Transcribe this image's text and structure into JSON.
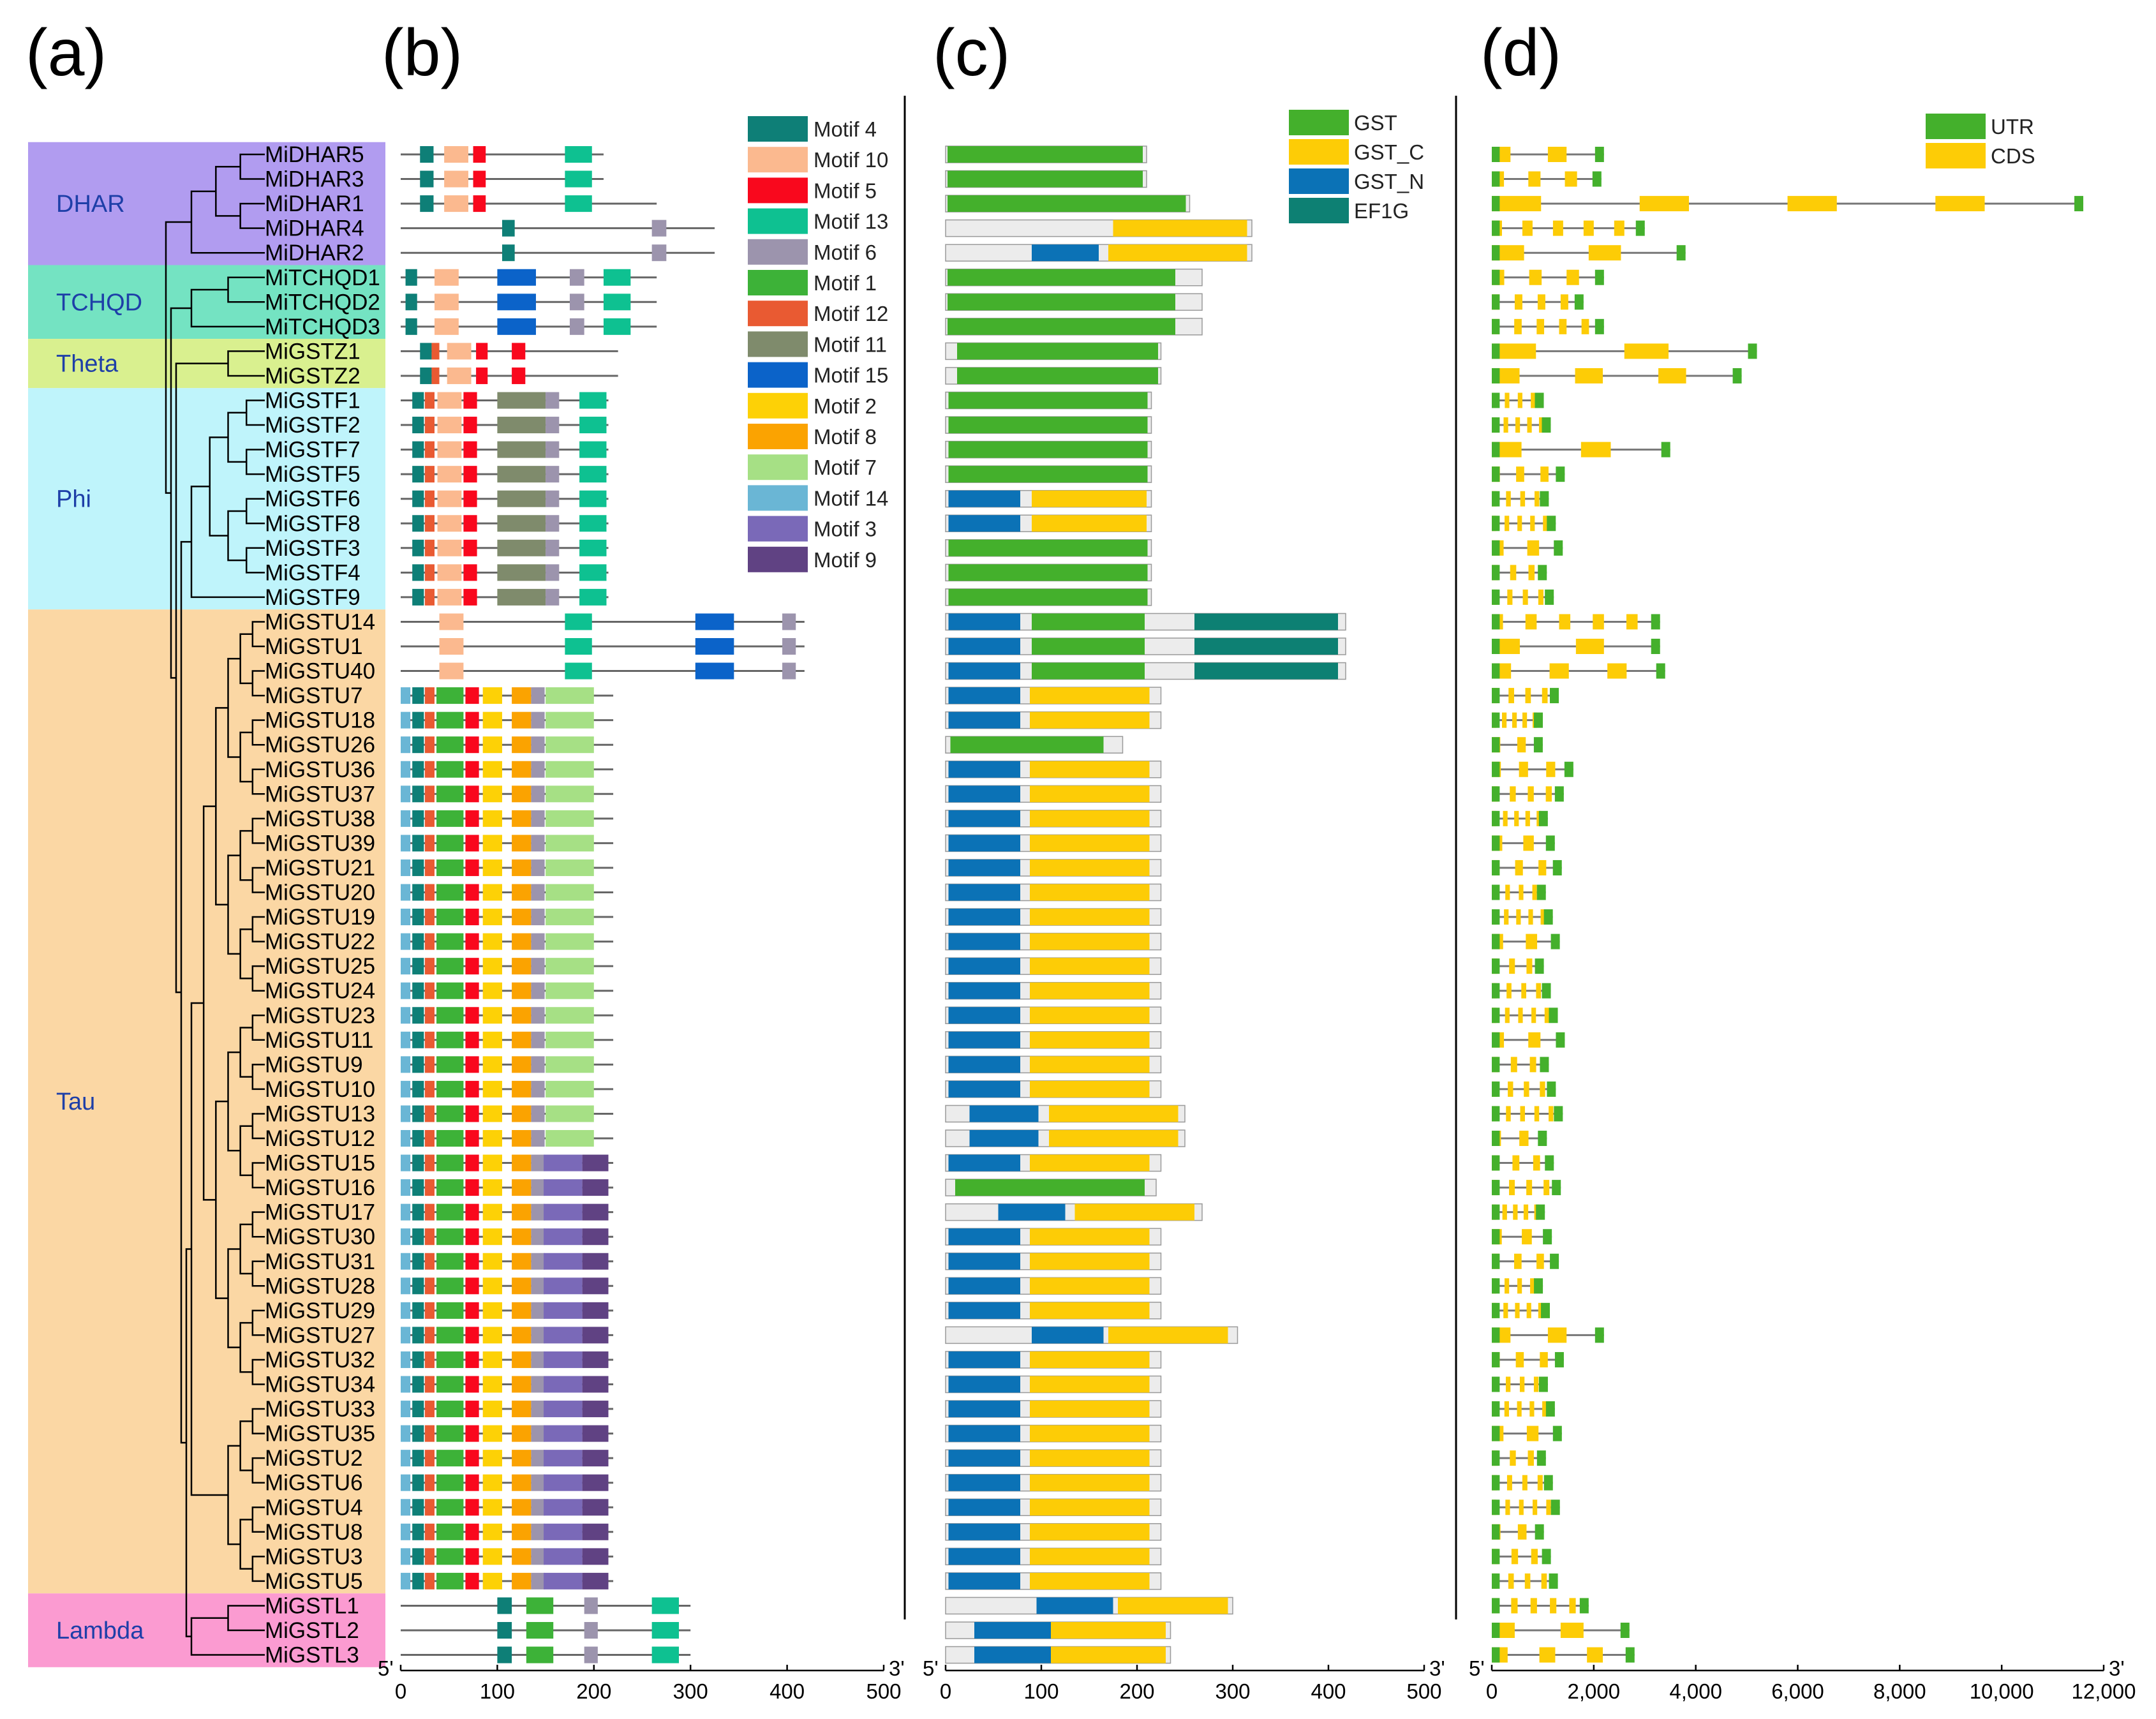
{
  "panels": {
    "a": "(a)",
    "b": "(b)",
    "c": "(c)",
    "d": "(d)"
  },
  "genes": [
    "MiDHAR5",
    "MiDHAR3",
    "MiDHAR1",
    "MiDHAR4",
    "MiDHAR2",
    "MiTCHQD1",
    "MiTCHQD2",
    "MiTCHQD3",
    "MiGSTZ1",
    "MiGSTZ2",
    "MiGSTF1",
    "MiGSTF2",
    "MiGSTF7",
    "MiGSTF5",
    "MiGSTF6",
    "MiGSTF8",
    "MiGSTF3",
    "MiGSTF4",
    "MiGSTF9",
    "MiGSTU14",
    "MiGSTU1",
    "MiGSTU40",
    "MiGSTU7",
    "MiGSTU18",
    "MiGSTU26",
    "MiGSTU36",
    "MiGSTU37",
    "MiGSTU38",
    "MiGSTU39",
    "MiGSTU21",
    "MiGSTU20",
    "MiGSTU19",
    "MiGSTU22",
    "MiGSTU25",
    "MiGSTU24",
    "MiGSTU23",
    "MiGSTU11",
    "MiGSTU9",
    "MiGSTU10",
    "MiGSTU13",
    "MiGSTU12",
    "MiGSTU15",
    "MiGSTU16",
    "MiGSTU17",
    "MiGSTU30",
    "MiGSTU31",
    "MiGSTU28",
    "MiGSTU29",
    "MiGSTU27",
    "MiGSTU32",
    "MiGSTU34",
    "MiGSTU33",
    "MiGSTU35",
    "MiGSTU2",
    "MiGSTU6",
    "MiGSTU4",
    "MiGSTU8",
    "MiGSTU3",
    "MiGSTU5",
    "MiGSTL1",
    "MiGSTL2",
    "MiGSTL3"
  ],
  "clades": [
    {
      "name": "DHAR",
      "first": 0,
      "last": 4,
      "color": "#b19cf0"
    },
    {
      "name": "TCHQD",
      "first": 5,
      "last": 7,
      "color": "#74e3c2"
    },
    {
      "name": "Theta",
      "first": 8,
      "last": 9,
      "color": "#d9f08f"
    },
    {
      "name": "Phi",
      "first": 10,
      "last": 18,
      "color": "#bff4fb"
    },
    {
      "name": "Tau",
      "first": 19,
      "last": 58,
      "color": "#fbd7a4"
    },
    {
      "name": "Lambda",
      "first": 59,
      "last": 61,
      "color": "#fb9bd1"
    }
  ],
  "motif_legend": [
    {
      "label": "Motif 4",
      "color": "#0e7f77"
    },
    {
      "label": "Motif 10",
      "color": "#fbb98f"
    },
    {
      "label": "Motif 5",
      "color": "#f9081d"
    },
    {
      "label": "Motif 13",
      "color": "#0ec191"
    },
    {
      "label": "Motif 6",
      "color": "#9c94ad"
    },
    {
      "label": "Motif 1",
      "color": "#3db238"
    },
    {
      "label": "Motif 12",
      "color": "#e95a32"
    },
    {
      "label": "Motif 11",
      "color": "#7f8b6c"
    },
    {
      "label": "Motif 15",
      "color": "#0b63c9"
    },
    {
      "label": "Motif 2",
      "color": "#fdd106"
    },
    {
      "label": "Motif 8",
      "color": "#fba301"
    },
    {
      "label": "Motif 7",
      "color": "#a6e085"
    },
    {
      "label": "Motif 14",
      "color": "#6ab6d5"
    },
    {
      "label": "Motif 3",
      "color": "#7a69b8"
    },
    {
      "label": "Motif 9",
      "color": "#604283"
    }
  ],
  "domain_legend": [
    {
      "label": "GST",
      "color": "#44b02c"
    },
    {
      "label": "GST_C",
      "color": "#fdcc06"
    },
    {
      "label": "GST_N",
      "color": "#0b72b6"
    },
    {
      "label": "EF1G",
      "color": "#0d8073"
    }
  ],
  "structure_legend": [
    {
      "label": "UTR",
      "color": "#44b02c"
    },
    {
      "label": "CDS",
      "color": "#fdcc06"
    }
  ],
  "axis_b": {
    "prime5": "5'",
    "prime3": "3'",
    "ticks": [
      "0",
      "100",
      "200",
      "300",
      "400",
      "500"
    ],
    "max": 500
  },
  "axis_c": {
    "prime5": "5'",
    "prime3": "3'",
    "ticks": [
      "0",
      "100",
      "200",
      "300",
      "400",
      "500"
    ],
    "max": 500
  },
  "axis_d": {
    "prime5": "5'",
    "prime3": "3'",
    "ticks": [
      "0",
      "2,000",
      "4,000",
      "6,000",
      "8,000",
      "10,000",
      "12,000"
    ],
    "max": 12000
  }
}
